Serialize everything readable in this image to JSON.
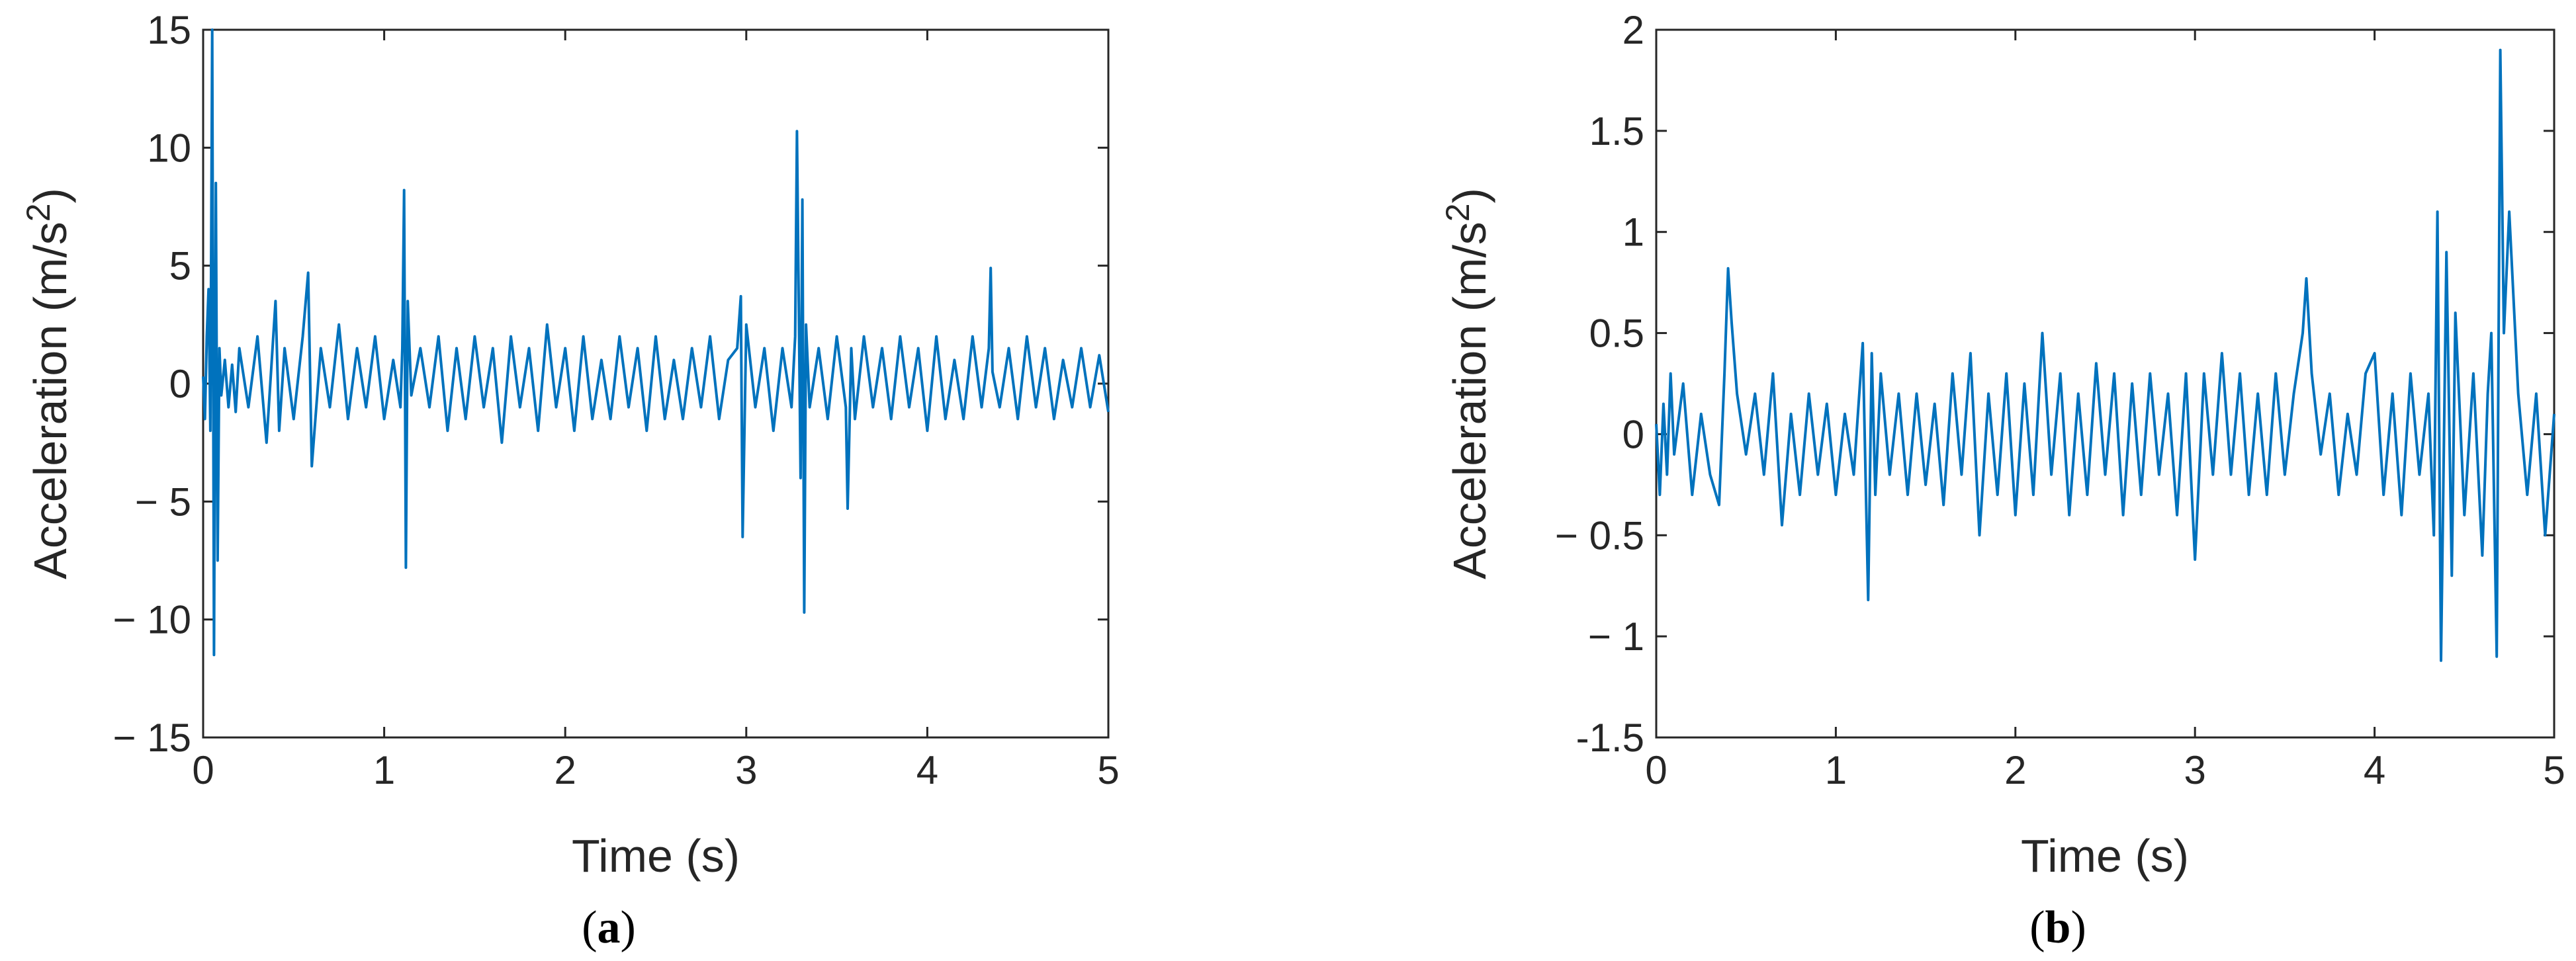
{
  "line_color": "#0072BD",
  "chart_data": [
    {
      "type": "line",
      "subfigure_label": {
        "open": "(",
        "letter": "a",
        "close": ")"
      },
      "xlabel": "Time (s)",
      "ylabel": {
        "text": "Acceleration (m/s",
        "sup": "2",
        "close": ")"
      },
      "xlim": [
        0,
        5
      ],
      "ylim": [
        -15,
        15
      ],
      "xticks": [
        0,
        1,
        2,
        3,
        4,
        5
      ],
      "yticks": [
        -15,
        -10,
        -5,
        0,
        5,
        10,
        15
      ],
      "ytick_labels": [
        "− 15",
        "− 10",
        "− 5",
        "0",
        "5",
        "10",
        "15"
      ],
      "grid": false,
      "series": [
        {
          "x": [
            0,
            0.01,
            0.02,
            0.03,
            0.04,
            0.05,
            0.06,
            0.07,
            0.08,
            0.09,
            0.1,
            0.12,
            0.14,
            0.16,
            0.18,
            0.2,
            0.25,
            0.3,
            0.35,
            0.4,
            0.42,
            0.45,
            0.5,
            0.55,
            0.58,
            0.6,
            0.65,
            0.7,
            0.75,
            0.8,
            0.85,
            0.9,
            0.95,
            1.0,
            1.05,
            1.09,
            1.1,
            1.11,
            1.12,
            1.13,
            1.15,
            1.2,
            1.25,
            1.3,
            1.35,
            1.4,
            1.45,
            1.5,
            1.55,
            1.6,
            1.65,
            1.7,
            1.75,
            1.8,
            1.85,
            1.9,
            1.95,
            2.0,
            2.05,
            2.1,
            2.15,
            2.2,
            2.25,
            2.3,
            2.35,
            2.4,
            2.45,
            2.5,
            2.55,
            2.6,
            2.65,
            2.7,
            2.75,
            2.8,
            2.85,
            2.9,
            2.95,
            2.97,
            2.98,
            3.0,
            3.05,
            3.1,
            3.15,
            3.2,
            3.25,
            3.27,
            3.28,
            3.3,
            3.31,
            3.32,
            3.33,
            3.35,
            3.4,
            3.45,
            3.5,
            3.55,
            3.56,
            3.58,
            3.6,
            3.65,
            3.7,
            3.75,
            3.8,
            3.85,
            3.9,
            3.95,
            4.0,
            4.05,
            4.1,
            4.15,
            4.2,
            4.25,
            4.3,
            4.34,
            4.35,
            4.36,
            4.4,
            4.45,
            4.5,
            4.55,
            4.6,
            4.65,
            4.7,
            4.75,
            4.8,
            4.85,
            4.9,
            4.95,
            5.0
          ],
          "y": [
            0.3,
            -1.5,
            2.0,
            4.0,
            -2.0,
            15.0,
            -11.5,
            8.5,
            -7.5,
            1.5,
            -0.5,
            1.0,
            -1.0,
            0.8,
            -1.2,
            1.5,
            -1.0,
            2.0,
            -2.5,
            3.5,
            -2.0,
            1.5,
            -1.5,
            2.0,
            4.7,
            -3.5,
            1.5,
            -1.0,
            2.5,
            -1.5,
            1.5,
            -1.0,
            2.0,
            -1.5,
            1.0,
            -1.0,
            1.5,
            8.2,
            -7.8,
            3.5,
            -0.5,
            1.5,
            -1.0,
            2.0,
            -2.0,
            1.5,
            -1.5,
            2.0,
            -1.0,
            1.5,
            -2.5,
            2.0,
            -1.0,
            1.5,
            -2.0,
            2.5,
            -1.0,
            1.5,
            -2.0,
            2.0,
            -1.5,
            1.0,
            -1.5,
            2.0,
            -1.0,
            1.5,
            -2.0,
            2.0,
            -1.5,
            1.0,
            -1.5,
            1.5,
            -1.0,
            2.0,
            -1.5,
            1.0,
            1.5,
            3.7,
            -6.5,
            2.5,
            -1.0,
            1.5,
            -2.0,
            1.5,
            -1.0,
            2.0,
            10.7,
            -4.0,
            7.8,
            -9.7,
            2.5,
            -1.0,
            1.5,
            -1.5,
            2.0,
            -1.0,
            -5.3,
            1.5,
            -1.5,
            2.0,
            -1.0,
            1.5,
            -1.5,
            2.0,
            -1.0,
            1.5,
            -2.0,
            2.0,
            -1.5,
            1.0,
            -1.5,
            2.0,
            -1.0,
            1.5,
            4.9,
            0.5,
            -1.0,
            1.5,
            -1.5,
            2.0,
            -1.0,
            1.5,
            -1.5,
            1.0,
            -1.0,
            1.5,
            -1.0,
            1.2,
            -1.2
          ]
        }
      ]
    },
    {
      "type": "line",
      "subfigure_label": {
        "open": "(",
        "letter": "b",
        "close": ")"
      },
      "xlabel": "Time (s)",
      "ylabel": {
        "text": "Acceleration (m/s",
        "sup": "2",
        "close": ")"
      },
      "xlim": [
        0,
        5
      ],
      "ylim": [
        -1.5,
        2
      ],
      "xticks": [
        0,
        1,
        2,
        3,
        4,
        5
      ],
      "yticks": [
        -1.5,
        -1,
        -0.5,
        0,
        0.5,
        1,
        1.5,
        2
      ],
      "ytick_labels": [
        "-1.5",
        "− 1",
        "− 0.5",
        "0",
        "0.5",
        "1",
        "1.5",
        "2"
      ],
      "grid": false,
      "series": [
        {
          "x": [
            0,
            0.02,
            0.04,
            0.06,
            0.08,
            0.1,
            0.15,
            0.2,
            0.25,
            0.3,
            0.35,
            0.38,
            0.4,
            0.42,
            0.45,
            0.5,
            0.55,
            0.6,
            0.65,
            0.7,
            0.75,
            0.8,
            0.85,
            0.9,
            0.95,
            1.0,
            1.05,
            1.1,
            1.15,
            1.18,
            1.2,
            1.22,
            1.25,
            1.3,
            1.35,
            1.4,
            1.45,
            1.5,
            1.55,
            1.6,
            1.65,
            1.7,
            1.75,
            1.8,
            1.85,
            1.9,
            1.95,
            2.0,
            2.05,
            2.1,
            2.15,
            2.2,
            2.25,
            2.3,
            2.35,
            2.4,
            2.45,
            2.5,
            2.55,
            2.6,
            2.65,
            2.7,
            2.75,
            2.8,
            2.85,
            2.9,
            2.95,
            3.0,
            3.05,
            3.1,
            3.15,
            3.2,
            3.25,
            3.3,
            3.35,
            3.4,
            3.45,
            3.5,
            3.55,
            3.6,
            3.62,
            3.65,
            3.7,
            3.75,
            3.8,
            3.85,
            3.9,
            3.95,
            4.0,
            4.05,
            4.1,
            4.15,
            4.2,
            4.25,
            4.3,
            4.33,
            4.35,
            4.37,
            4.4,
            4.43,
            4.45,
            4.5,
            4.55,
            4.6,
            4.63,
            4.65,
            4.68,
            4.7,
            4.72,
            4.75,
            4.8,
            4.85,
            4.9,
            4.95,
            5.0
          ],
          "y": [
            0.05,
            -0.3,
            0.15,
            -0.2,
            0.3,
            -0.1,
            0.25,
            -0.3,
            0.1,
            -0.2,
            -0.35,
            0.3,
            0.82,
            0.55,
            0.2,
            -0.1,
            0.2,
            -0.2,
            0.3,
            -0.45,
            0.1,
            -0.3,
            0.2,
            -0.2,
            0.15,
            -0.3,
            0.1,
            -0.2,
            0.45,
            -0.82,
            0.4,
            -0.3,
            0.3,
            -0.2,
            0.2,
            -0.3,
            0.2,
            -0.25,
            0.15,
            -0.35,
            0.3,
            -0.2,
            0.4,
            -0.5,
            0.2,
            -0.3,
            0.3,
            -0.4,
            0.25,
            -0.3,
            0.5,
            -0.2,
            0.3,
            -0.4,
            0.2,
            -0.3,
            0.35,
            -0.2,
            0.3,
            -0.4,
            0.25,
            -0.3,
            0.3,
            -0.2,
            0.2,
            -0.4,
            0.3,
            -0.62,
            0.3,
            -0.2,
            0.4,
            -0.2,
            0.3,
            -0.3,
            0.2,
            -0.3,
            0.3,
            -0.2,
            0.2,
            0.5,
            0.77,
            0.3,
            -0.1,
            0.2,
            -0.3,
            0.1,
            -0.2,
            0.3,
            0.4,
            -0.3,
            0.2,
            -0.4,
            0.3,
            -0.2,
            0.2,
            -0.5,
            1.1,
            -1.12,
            0.9,
            -0.7,
            0.6,
            -0.4,
            0.3,
            -0.6,
            0.2,
            0.5,
            -1.1,
            1.9,
            0.5,
            1.1,
            0.2,
            -0.3,
            0.2,
            -0.5,
            0.1
          ]
        }
      ]
    }
  ]
}
